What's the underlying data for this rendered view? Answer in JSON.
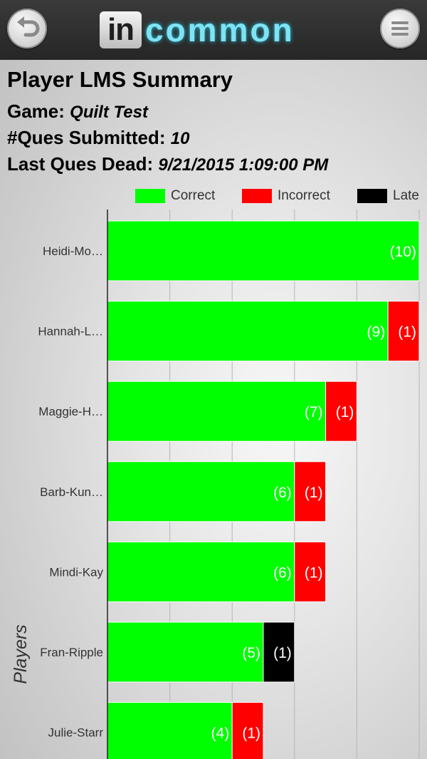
{
  "header": {
    "back_icon": "back-arrow-icon",
    "menu_icon": "hamburger-menu-icon",
    "logo_box_text": "in",
    "logo_word": "common",
    "logo_color": "#7fe3f3"
  },
  "summary": {
    "title": "Player LMS Summary",
    "game_label": "Game:",
    "game_value": "Quilt Test",
    "submitted_label": "#Ques Submitted:",
    "submitted_value": "10",
    "dead_label": "Last Ques Dead:",
    "dead_value": "9/21/2015 1:09:00 PM"
  },
  "legend": {
    "correct": "Correct",
    "incorrect": "Incorrect",
    "late": "Late"
  },
  "chart_data": {
    "type": "bar",
    "orientation": "horizontal",
    "stacked": true,
    "ylabel": "Players",
    "xlabel": "",
    "xlim": [
      0,
      10
    ],
    "grid": true,
    "legend_position": "top-right",
    "categories": [
      "Heidi-Mo…",
      "Hannah-L…",
      "Maggie-H…",
      "Barb-Kun…",
      "Mindi-Kay",
      "Fran-Ripple",
      "Julie-Starr"
    ],
    "series": [
      {
        "name": "Correct",
        "color": "#00ff00",
        "values": [
          10,
          9,
          7,
          6,
          6,
          5,
          4
        ]
      },
      {
        "name": "Incorrect",
        "color": "#ff0000",
        "values": [
          0,
          1,
          1,
          1,
          1,
          0,
          1
        ]
      },
      {
        "name": "Late",
        "color": "#000000",
        "values": [
          0,
          0,
          0,
          0,
          0,
          1,
          0
        ]
      }
    ]
  }
}
